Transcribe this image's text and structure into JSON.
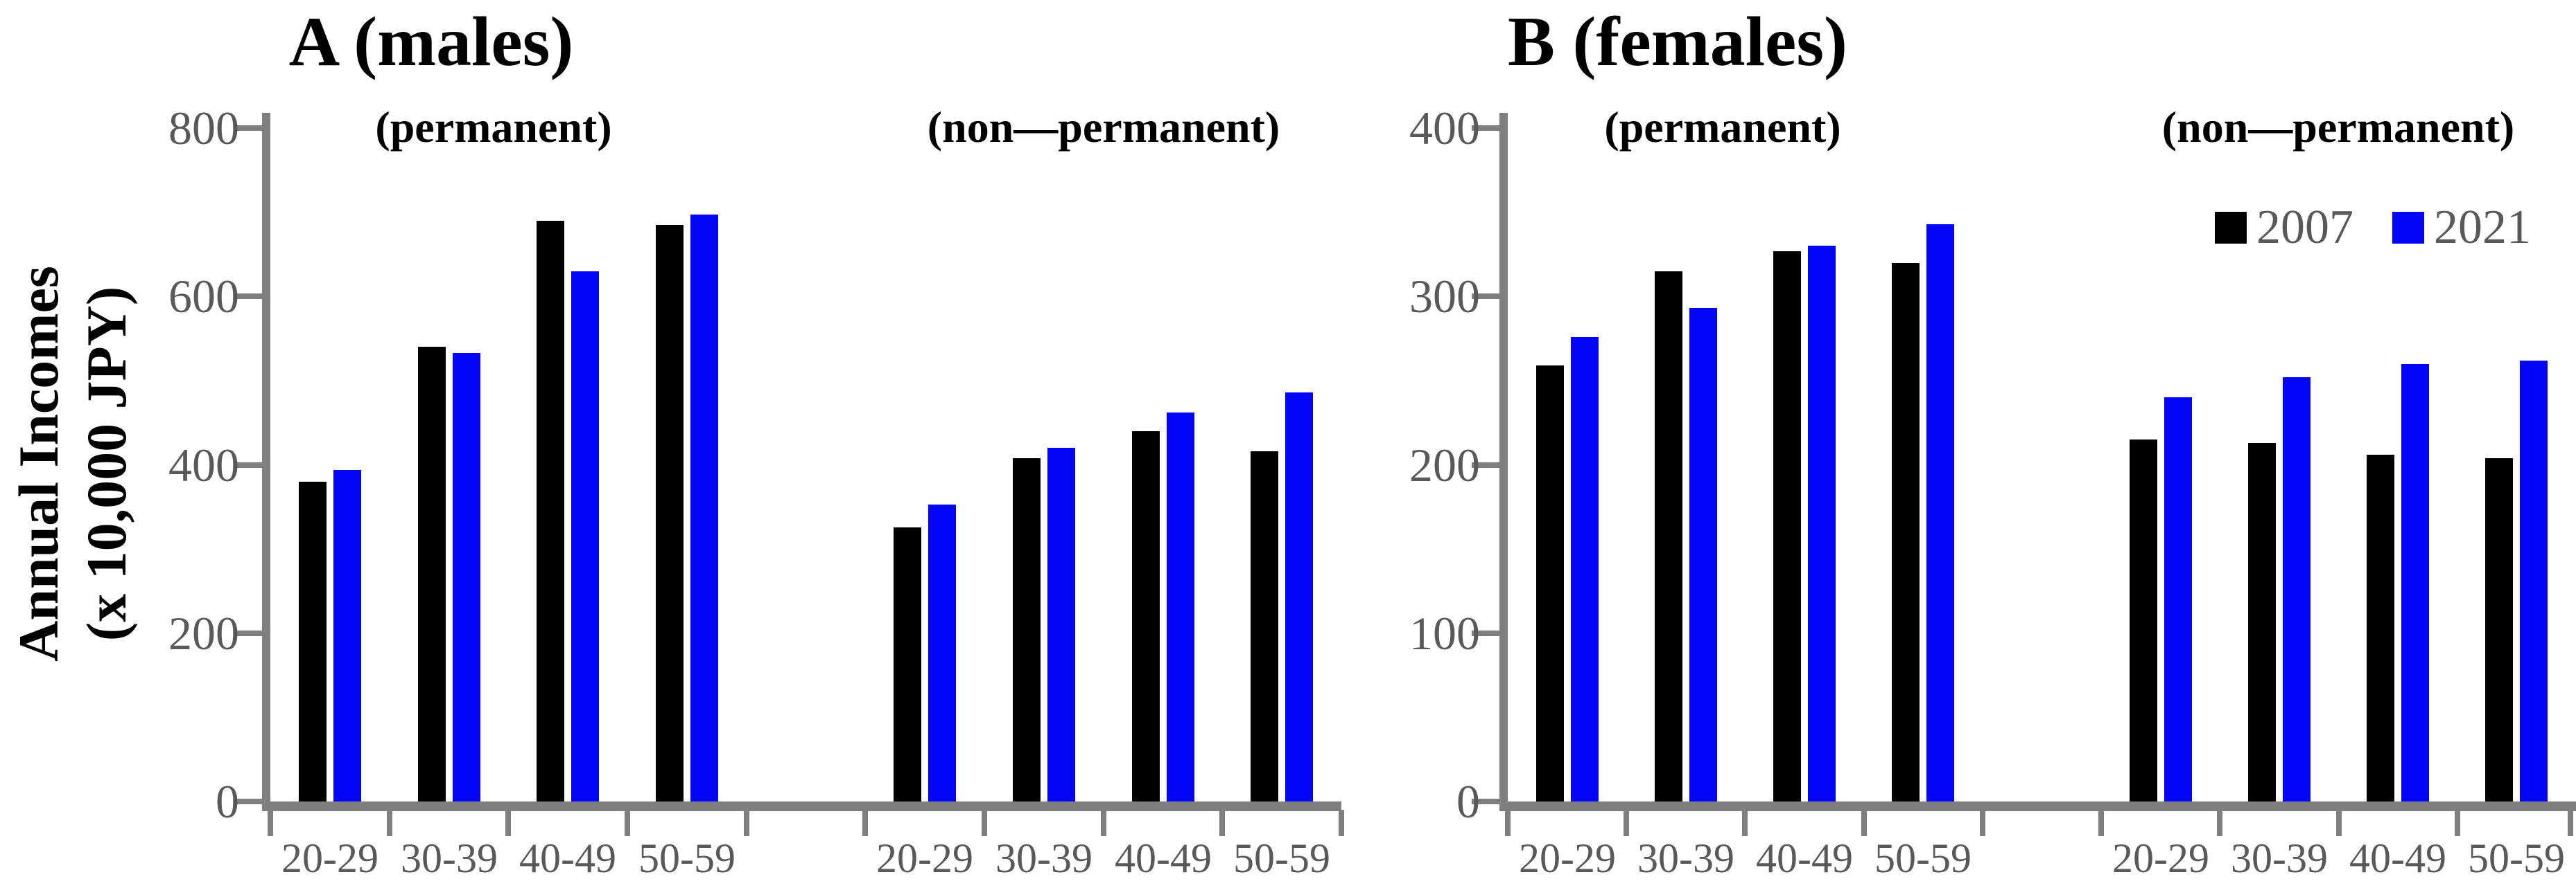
{
  "figure": {
    "ylabel_line1": "Annual Incomes",
    "ylabel_line2": "(x 10,000 JPY)",
    "colors": {
      "series_2007": "#000000",
      "series_2021": "#0404f6",
      "axis": "#7f7f7f",
      "tick_text": "#595959",
      "label_text": "#000000"
    }
  },
  "legend": {
    "items": [
      {
        "label": "2007",
        "color": "#000000"
      },
      {
        "label": "2021",
        "color": "#0404f6"
      }
    ]
  },
  "chart_data": [
    {
      "id": "A",
      "type": "bar",
      "title": "A (males)",
      "ylabel": "Annual Incomes (x 10,000 JPY)",
      "ylim": [
        0,
        800
      ],
      "yticks": [
        "800",
        "600",
        "400",
        "200",
        "0"
      ],
      "grid": false,
      "groups": [
        {
          "label": "(permanent)",
          "categories": [
            "20-29",
            "30-39",
            "40-49",
            "50-59"
          ],
          "series": [
            {
              "name": "2007",
              "values": [
                380,
                540,
                690,
                685
              ]
            },
            {
              "name": "2021",
              "values": [
                394,
                533,
                630,
                697
              ]
            }
          ]
        },
        {
          "label": "(non—permanent)",
          "categories": [
            "20-29",
            "30-39",
            "40-49",
            "50-59"
          ],
          "series": [
            {
              "name": "2007",
              "values": [
                326,
                408,
                440,
                416
              ]
            },
            {
              "name": "2021",
              "values": [
                353,
                420,
                462,
                486
              ]
            }
          ]
        }
      ]
    },
    {
      "id": "B",
      "type": "bar",
      "title": "B (females)",
      "ylabel": "Annual Incomes (x 10,000 JPY)",
      "ylim": [
        0,
        400
      ],
      "yticks": [
        "400",
        "300",
        "200",
        "100",
        "0"
      ],
      "grid": false,
      "legend_position": "top-right",
      "groups": [
        {
          "label": "(permanent)",
          "categories": [
            "20-29",
            "30-39",
            "40-49",
            "50-59"
          ],
          "series": [
            {
              "name": "2007",
              "values": [
                259,
                315,
                327,
                320
              ]
            },
            {
              "name": "2021",
              "values": [
                276,
                293,
                330,
                343
              ]
            }
          ]
        },
        {
          "label": "(non—permanent)",
          "categories": [
            "20-29",
            "30-39",
            "40-49",
            "50-59"
          ],
          "series": [
            {
              "name": "2007",
              "values": [
                215,
                213,
                206,
                204
              ]
            },
            {
              "name": "2021",
              "values": [
                240,
                252,
                260,
                262
              ]
            }
          ]
        }
      ]
    }
  ]
}
